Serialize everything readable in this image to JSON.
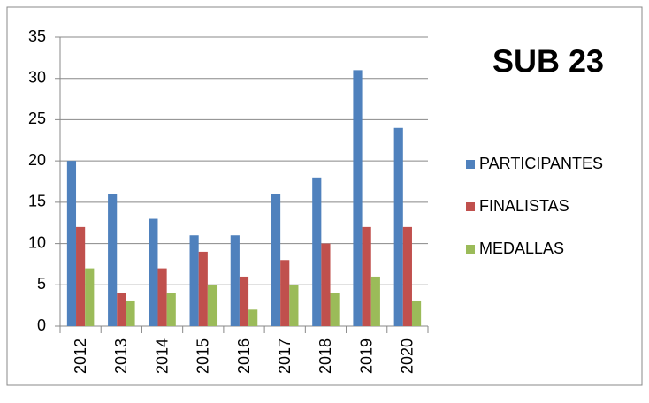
{
  "chart_data": {
    "type": "bar",
    "title": "SUB 23",
    "categories": [
      "2012",
      "2013",
      "2014",
      "2015",
      "2016",
      "2017",
      "2018",
      "2019",
      "2020"
    ],
    "series": [
      {
        "name": "PARTICIPANTES",
        "color": "#4f81bd",
        "values": [
          20,
          16,
          13,
          11,
          11,
          16,
          18,
          31,
          24
        ]
      },
      {
        "name": "FINALISTAS",
        "color": "#c0504d",
        "values": [
          12,
          4,
          7,
          9,
          6,
          8,
          10,
          12,
          12
        ]
      },
      {
        "name": "MEDALLAS",
        "color": "#9bbb59",
        "values": [
          7,
          3,
          4,
          5,
          2,
          5,
          4,
          6,
          3
        ]
      }
    ],
    "ylim": [
      0,
      35
    ],
    "yticks": [
      0,
      5,
      10,
      15,
      20,
      25,
      30,
      35
    ],
    "grid": true,
    "legend": "right"
  }
}
